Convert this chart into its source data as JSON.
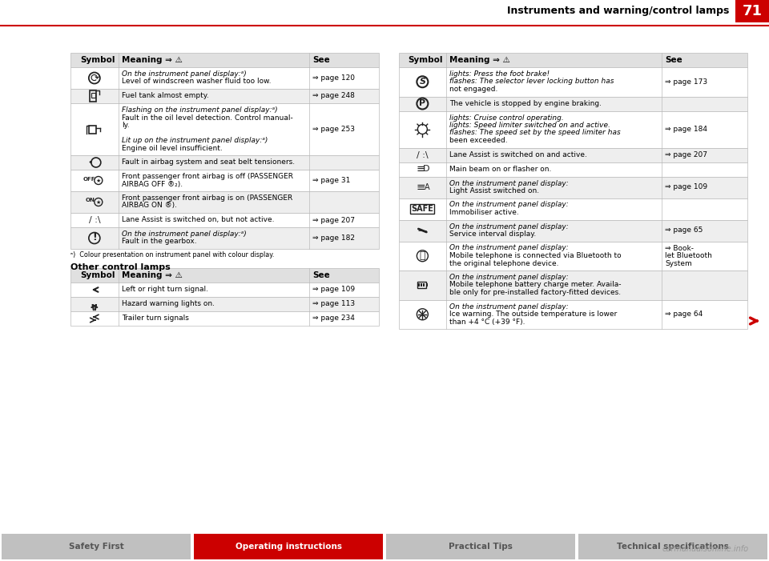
{
  "page_num": "71",
  "header_title": "Instruments and warning/control lamps",
  "header_line_color": "#cc0000",
  "header_bg_color": "#cc0000",
  "header_text_color": "#ffffff",
  "bg_color": "#ffffff",
  "table_border_color": "#bbbbbb",
  "table_header_bg": "#e0e0e0",
  "table_row_alt_bg": "#eeeeee",
  "text_color": "#000000",
  "red_color": "#cc0000",
  "footer_bg": "#c0c0c0",
  "footer_active_bg": "#cc0000",
  "footer_tabs": [
    "Safety First",
    "Operating instructions",
    "Practical Tips",
    "Technical specifications"
  ],
  "footer_active_idx": 1,
  "col_headers": [
    "Symbol",
    "Meaning ⇒ ⚠",
    "See"
  ],
  "left_rows": [
    {
      "symbol": "washer",
      "meaning_lines": [
        {
          "text": "On the instrument panel display:ᵃ)",
          "italic": true
        },
        {
          "text": "Level of windscreen washer fluid too low.",
          "italic": false
        }
      ],
      "see": "⇒ page 120",
      "shaded": false
    },
    {
      "symbol": "fuel",
      "meaning_lines": [
        {
          "text": "Fuel tank almost empty.",
          "italic": false
        }
      ],
      "see": "⇒ page 248",
      "shaded": true
    },
    {
      "symbol": "oil",
      "meaning_lines": [
        {
          "text": "Flashing on the instrument panel display:ᵃ)",
          "italic": true
        },
        {
          "text": "Fault in the oil level detection. Control manual-",
          "italic": false
        },
        {
          "text": "ly.",
          "italic": false
        },
        {
          "text": "",
          "italic": false
        },
        {
          "text": "Lit up on the instrument panel display:ᵃ)",
          "italic": true
        },
        {
          "text": "Engine oil level insufficient.",
          "italic": false
        }
      ],
      "see": "⇒ page 253",
      "shaded": false
    },
    {
      "symbol": "airbag_fault",
      "meaning_lines": [
        {
          "text": "Fault in airbag system and seat belt tensioners.",
          "italic": false
        }
      ],
      "see": "",
      "shaded": true
    },
    {
      "symbol": "airbag_off",
      "meaning_lines": [
        {
          "text": "Front passenger front airbag is off (PASSENGER",
          "italic": false
        },
        {
          "text": "AIRBAG OFF ®₂).",
          "italic": false
        }
      ],
      "see": "⇒ page 31",
      "shaded": false
    },
    {
      "symbol": "airbag_on",
      "meaning_lines": [
        {
          "text": "Front passenger front airbag is on (PASSENGER",
          "italic": false
        },
        {
          "text": "AIRBAG ON ®).",
          "italic": false
        }
      ],
      "see": "",
      "shaded": true
    },
    {
      "symbol": "lane_off",
      "meaning_lines": [
        {
          "text": "Lane Assist is switched on, but not active.",
          "italic": false
        }
      ],
      "see": "⇒ page 207",
      "shaded": false
    },
    {
      "symbol": "gearbox",
      "meaning_lines": [
        {
          "text": "On the instrument panel display:ᵃ)",
          "italic": true
        },
        {
          "text": "Fault in the gearbox.",
          "italic": false
        }
      ],
      "see": "⇒ page 182",
      "shaded": true
    }
  ],
  "footnote": "ᵃ)  Colour presentation on instrument panel with colour display.",
  "other_title": "Other control lamps",
  "other_rows": [
    {
      "symbol": "turn_left",
      "meaning_lines": [
        {
          "text": "Left or right turn signal.",
          "italic": false
        }
      ],
      "see": "⇒ page 109",
      "shaded": false
    },
    {
      "symbol": "hazard",
      "meaning_lines": [
        {
          "text": "Hazard warning lights on.",
          "italic": false
        }
      ],
      "see": "⇒ page 113",
      "shaded": true
    },
    {
      "symbol": "trailer",
      "meaning_lines": [
        {
          "text": "Trailer turn signals",
          "italic": false
        }
      ],
      "see": "⇒ page 234",
      "shaded": false
    }
  ],
  "right_rows": [
    {
      "symbol": "brake",
      "meaning_lines": [
        {
          "text": "lights: Press the foot brake!",
          "italic": true
        },
        {
          "text": "flashes: The selector lever locking button has",
          "italic": true
        },
        {
          "text": "not engaged.",
          "italic": false
        }
      ],
      "see": "⇒ page 173",
      "shaded": false
    },
    {
      "symbol": "park_brake",
      "meaning_lines": [
        {
          "text": "The vehicle is stopped by engine braking.",
          "italic": false
        }
      ],
      "see": "",
      "shaded": true
    },
    {
      "symbol": "speed_limiter",
      "meaning_lines": [
        {
          "text": "lights: Cruise control operating.",
          "italic": true
        },
        {
          "text": "lights: Speed limiter switched on and active.",
          "italic": true
        },
        {
          "text": "flashes: The speed set by the speed limiter has",
          "italic": true
        },
        {
          "text": "been exceeded.",
          "italic": false
        }
      ],
      "see": "⇒ page 184",
      "shaded": false
    },
    {
      "symbol": "lane_on",
      "meaning_lines": [
        {
          "text": "Lane Assist is switched on and active.",
          "italic": false
        }
      ],
      "see": "⇒ page 207",
      "shaded": true
    },
    {
      "symbol": "main_beam",
      "meaning_lines": [
        {
          "text": "Main beam on or flasher on.",
          "italic": false
        }
      ],
      "see": "",
      "shaded": false
    },
    {
      "symbol": "light_assist",
      "meaning_lines": [
        {
          "text": "On the instrument panel display:",
          "italic": true
        },
        {
          "text": "Light Assist switched on.",
          "italic": false
        }
      ],
      "see": "⇒ page 109",
      "shaded": true
    },
    {
      "symbol": "safe",
      "meaning_lines": [
        {
          "text": "On the instrument panel display:",
          "italic": true
        },
        {
          "text": "Immobiliser active.",
          "italic": false
        }
      ],
      "see": "",
      "shaded": false
    },
    {
      "symbol": "service",
      "meaning_lines": [
        {
          "text": "On the instrument panel display:",
          "italic": true
        },
        {
          "text": "Service interval display.",
          "italic": false
        }
      ],
      "see": "⇒ page 65",
      "shaded": true
    },
    {
      "symbol": "bluetooth",
      "meaning_lines": [
        {
          "text": "On the instrument panel display:",
          "italic": true
        },
        {
          "text": "Mobile telephone is connected via Bluetooth to",
          "italic": false
        },
        {
          "text": "the original telephone device.",
          "italic": false
        }
      ],
      "see": "⇒ Book-\nlet Bluetooth\nSystem",
      "shaded": false
    },
    {
      "symbol": "battery_charge",
      "meaning_lines": [
        {
          "text": "On the instrument panel display:",
          "italic": true
        },
        {
          "text": "Mobile telephone battery charge meter. Availa-",
          "italic": false
        },
        {
          "text": "ble only for pre-installed factory-fitted devices.",
          "italic": false
        }
      ],
      "see": "",
      "shaded": true
    },
    {
      "symbol": "ice_warning",
      "meaning_lines": [
        {
          "text": "On the instrument panel display:",
          "italic": true
        },
        {
          "text": "Ice warning. The outside temperature is lower",
          "italic": false
        },
        {
          "text": "than +4 °C (+39 °F).",
          "italic": false
        }
      ],
      "see": "⇒ page 64",
      "shaded": false
    }
  ]
}
